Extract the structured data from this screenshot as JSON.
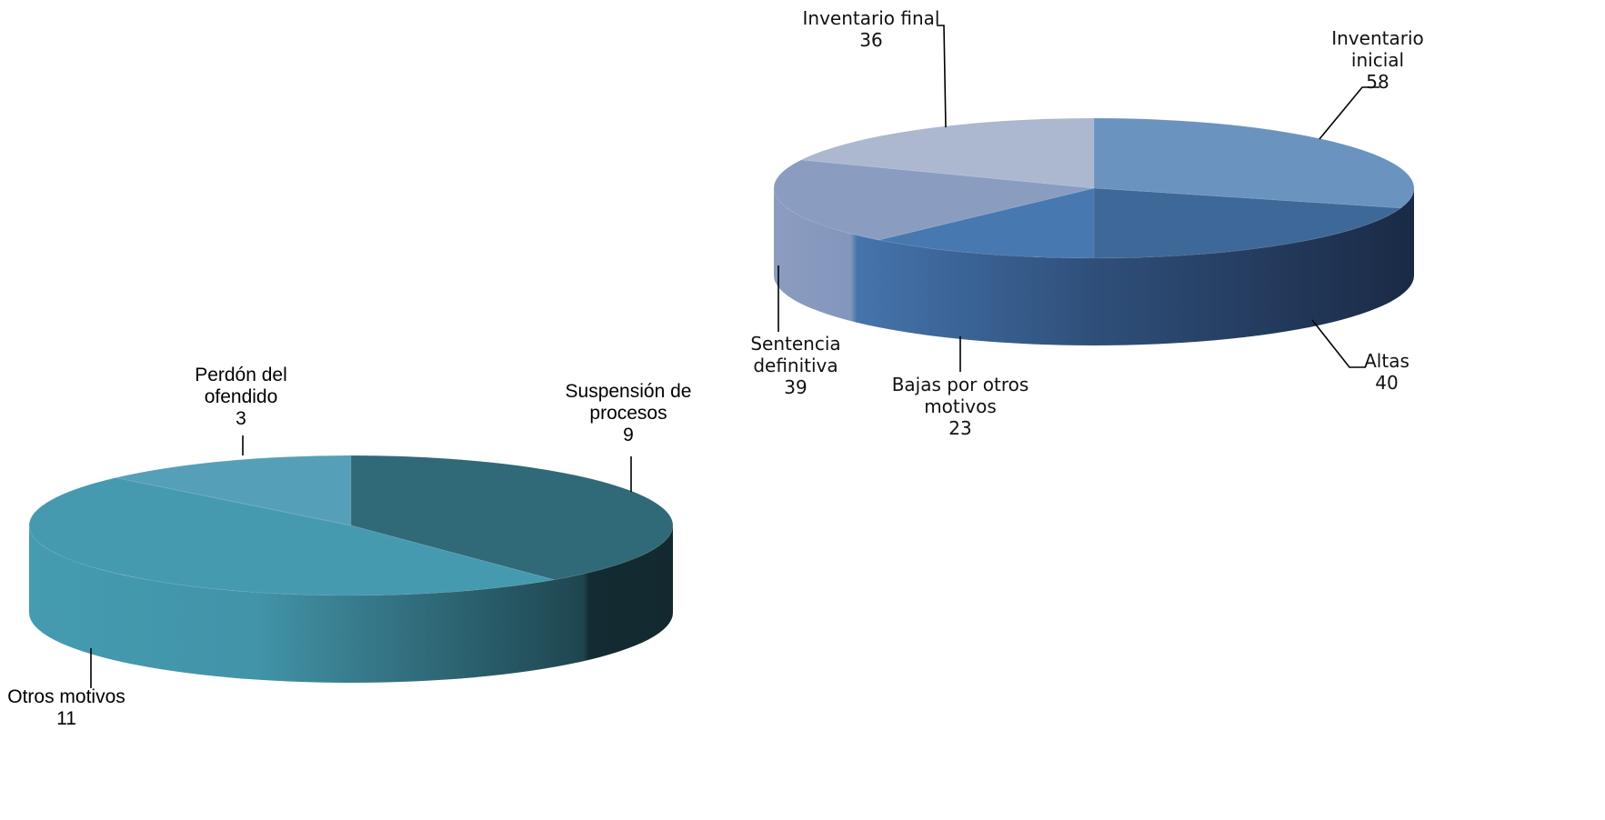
{
  "chart_data": [
    {
      "type": "pie",
      "style": "3d",
      "categories": [
        "Inventario inicial",
        "Altas",
        "Bajas por otros motivos",
        "Sentencia definitiva",
        "Inventario final"
      ],
      "values": [
        58,
        40,
        23,
        39,
        36
      ],
      "title": "",
      "colors": [
        "#6b93bf",
        "#3e6898",
        "#4778b0",
        "#8a9dc0",
        "#abb8d0"
      ],
      "labels": [
        {
          "lines": [
            "Inventario",
            "inicial"
          ],
          "value": "58"
        },
        {
          "lines": [
            "Altas"
          ],
          "value": "40"
        },
        {
          "lines": [
            "Bajas por otros",
            "motivos"
          ],
          "value": "23"
        },
        {
          "lines": [
            "Sentencia",
            "definitiva"
          ],
          "value": "39"
        },
        {
          "lines": [
            "Inventario final"
          ],
          "value": "36"
        }
      ]
    },
    {
      "type": "pie",
      "style": "3d",
      "categories": [
        "Suspensión de procesos",
        "Otros motivos",
        "Perdón del ofendido"
      ],
      "values": [
        9,
        11,
        3
      ],
      "title": "",
      "colors": [
        "#306978",
        "#459aaf",
        "#55a0b8"
      ],
      "labels": [
        {
          "lines": [
            "Suspensión de",
            "procesos"
          ],
          "value": "9"
        },
        {
          "lines": [
            "Otros motivos"
          ],
          "value": "11"
        },
        {
          "lines": [
            "Perdón del",
            "ofendido"
          ],
          "value": "3"
        }
      ]
    }
  ]
}
